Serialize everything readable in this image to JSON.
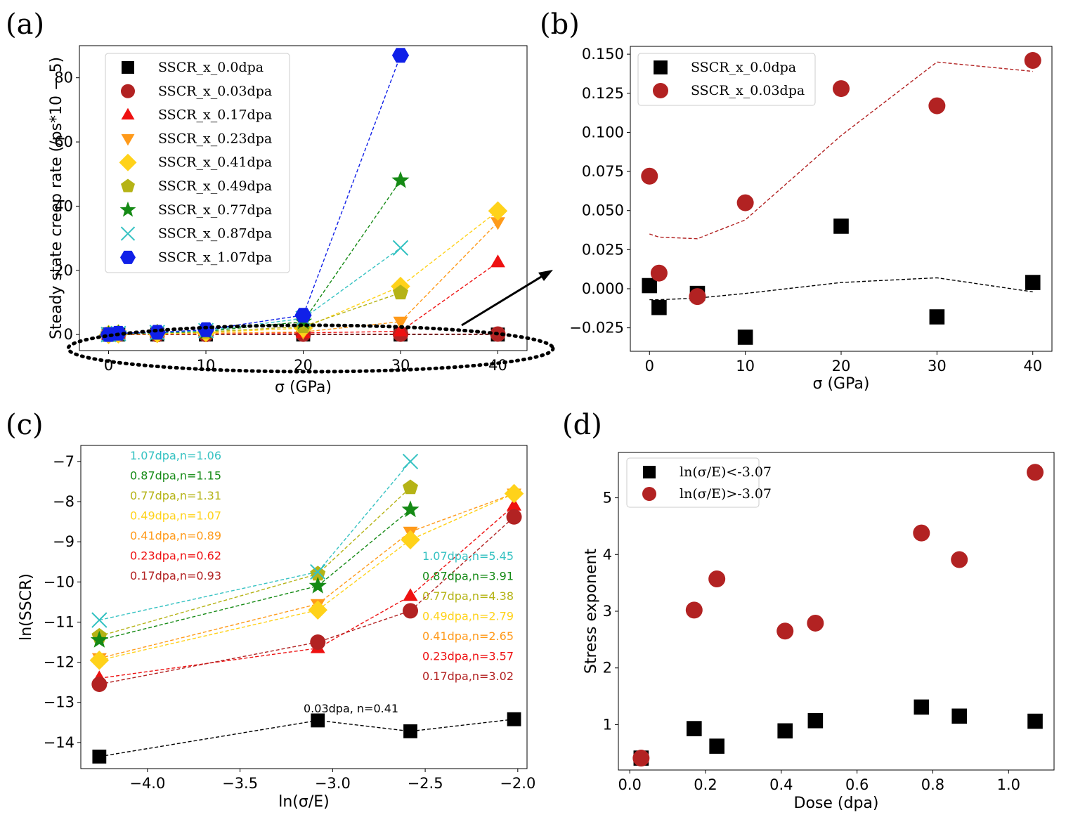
{
  "colors": {
    "dpa_0_0": "#000000",
    "dpa_0_03": "#b22222",
    "dpa_0_17": "#ee1111",
    "dpa_0_23": "#ff9a1a",
    "dpa_0_41": "#ffd21a",
    "dpa_0_49": "#b5b316",
    "dpa_0_77": "#158a15",
    "dpa_0_87": "#35c2c2",
    "dpa_1_07": "#1020e8"
  },
  "chart_data": [
    {
      "id": "a",
      "panel_label": "(a)",
      "type": "line",
      "xlabel": "σ (GPa)",
      "ylabel": "Steady state creep rate (/ps*10^-5)",
      "ylabel_display": "Steady state creep rate (/ps*10 − 5)",
      "xlim": [
        -3,
        43
      ],
      "ylim": [
        -5,
        90
      ],
      "xticks": [
        0,
        10,
        20,
        30,
        40
      ],
      "yticks": [
        0,
        20,
        40,
        60,
        80
      ],
      "legend_position": "upper-left",
      "annotation": "dotted ellipse around near-zero data with arrow to panel (b)",
      "series": [
        {
          "name": "SSCR_x_0.0dpa",
          "color": "dpa_0_0",
          "marker": "square",
          "x": [
            0,
            1,
            5,
            10,
            20,
            30,
            40
          ],
          "y": [
            0.0,
            0.0,
            0.0,
            0.0,
            0.0,
            0.0,
            0.0
          ]
        },
        {
          "name": "SSCR_x_0.03dpa",
          "color": "dpa_0_03",
          "marker": "circle",
          "x": [
            0,
            1,
            5,
            10,
            20,
            30,
            40
          ],
          "y": [
            0.07,
            0.01,
            0.0,
            0.05,
            0.13,
            0.12,
            0.15
          ]
        },
        {
          "name": "SSCR_x_0.17dpa",
          "color": "dpa_0_17",
          "marker": "triangle-up",
          "x": [
            0,
            1,
            5,
            10,
            20,
            30,
            40
          ],
          "y": [
            0.0,
            0.1,
            0.2,
            0.4,
            0.5,
            1.0,
            22.5
          ]
        },
        {
          "name": "SSCR_x_0.23dpa",
          "color": "dpa_0_23",
          "marker": "triangle-down",
          "x": [
            0,
            1,
            5,
            10,
            20,
            30,
            40
          ],
          "y": [
            0.0,
            0.1,
            0.2,
            0.4,
            0.8,
            4.0,
            35.0
          ]
        },
        {
          "name": "SSCR_x_0.41dpa",
          "color": "dpa_0_41",
          "marker": "diamond",
          "x": [
            0,
            1,
            5,
            10,
            20,
            30,
            40
          ],
          "y": [
            0.0,
            0.2,
            0.3,
            0.6,
            2.0,
            15.0,
            38.5
          ]
        },
        {
          "name": "SSCR_x_0.49dpa",
          "color": "dpa_0_49",
          "marker": "pentagon",
          "x": [
            0,
            1,
            5,
            10,
            20,
            30,
            40
          ],
          "y": [
            0.0,
            0.2,
            0.4,
            0.8,
            2.5,
            13.0,
            null
          ]
        },
        {
          "name": "SSCR_x_0.77dpa",
          "color": "dpa_0_77",
          "marker": "star",
          "x": [
            0,
            1,
            5,
            10,
            20,
            30,
            40
          ],
          "y": [
            0.0,
            0.3,
            0.5,
            1.0,
            4.0,
            48.0,
            null
          ]
        },
        {
          "name": "SSCR_x_0.87dpa",
          "color": "dpa_0_87",
          "marker": "x",
          "x": [
            0,
            1,
            5,
            10,
            20,
            30,
            40
          ],
          "y": [
            0.0,
            0.3,
            0.6,
            1.2,
            5.0,
            27.0,
            null
          ]
        },
        {
          "name": "SSCR_x_1.07dpa",
          "color": "dpa_1_07",
          "marker": "hexagon",
          "x": [
            0,
            1,
            5,
            10,
            20,
            30,
            40
          ],
          "y": [
            0.0,
            0.4,
            0.7,
            1.5,
            6.0,
            87.0,
            null
          ]
        }
      ]
    },
    {
      "id": "b",
      "panel_label": "(b)",
      "type": "scatter",
      "xlabel": "σ (GPa)",
      "ylabel": "",
      "xlim": [
        -2,
        42
      ],
      "ylim": [
        -0.04,
        0.155
      ],
      "xticks": [
        0,
        10,
        20,
        30,
        40
      ],
      "yticks": [
        -0.025,
        0.0,
        0.025,
        0.05,
        0.075,
        0.1,
        0.125,
        0.15
      ],
      "ytick_labels": [
        "−0.025",
        "0.000",
        "0.025",
        "0.050",
        "0.075",
        "0.100",
        "0.125",
        "0.150"
      ],
      "legend_position": "upper-left",
      "series": [
        {
          "name": "SSCR_x_0.0dpa",
          "color": "dpa_0_0",
          "marker": "square",
          "x": [
            0,
            1,
            5,
            10,
            20,
            30,
            40
          ],
          "y": [
            0.002,
            -0.012,
            -0.003,
            -0.031,
            0.04,
            -0.018,
            0.004
          ]
        },
        {
          "name": "SSCR_x_0.03dpa",
          "color": "dpa_0_03",
          "marker": "circle",
          "x": [
            0,
            1,
            5,
            10,
            20,
            30,
            40
          ],
          "y": [
            0.072,
            0.01,
            -0.005,
            0.055,
            0.128,
            0.117,
            0.146
          ]
        }
      ],
      "trend_lines": [
        {
          "color": "dpa_0_03",
          "x": [
            0,
            1,
            5,
            10,
            20,
            30,
            40
          ],
          "y": [
            0.035,
            0.033,
            0.032,
            0.044,
            0.098,
            0.145,
            0.139
          ]
        },
        {
          "color": "dpa_0_0",
          "x": [
            0,
            1,
            5,
            10,
            20,
            30,
            40
          ],
          "y": [
            -0.007,
            -0.007,
            -0.006,
            -0.003,
            0.004,
            0.007,
            -0.002
          ]
        }
      ]
    },
    {
      "id": "c",
      "panel_label": "(c)",
      "type": "line",
      "xlabel": "ln(σ/E)",
      "ylabel": "ln(SSCR)",
      "xlim": [
        -4.36,
        -1.95
      ],
      "ylim": [
        -14.65,
        -6.6
      ],
      "xticks": [
        -4.0,
        -3.5,
        -3.0,
        -2.5,
        -2.0
      ],
      "xtick_labels": [
        "−4.0",
        "−3.5",
        "−3.0",
        "−2.5",
        "−2.0"
      ],
      "yticks": [
        -14,
        -13,
        -12,
        -11,
        -10,
        -9,
        -8,
        -7
      ],
      "ytick_labels": [
        "−14",
        "−13",
        "−12",
        "−11",
        "−10",
        "−9",
        "−8",
        "−7"
      ],
      "annotations_left": [
        {
          "text": "1.07dpa,n=1.06",
          "color": "dpa_0_87"
        },
        {
          "text": "0.87dpa,n=1.15",
          "color": "dpa_0_77"
        },
        {
          "text": "0.77dpa,n=1.31",
          "color": "dpa_0_49"
        },
        {
          "text": "0.49dpa,n=1.07",
          "color": "dpa_0_41"
        },
        {
          "text": "0.41dpa,n=0.89",
          "color": "dpa_0_23"
        },
        {
          "text": "0.23dpa,n=0.62",
          "color": "dpa_0_17"
        },
        {
          "text": "0.17dpa,n=0.93",
          "color": "dpa_0_03"
        }
      ],
      "annotations_right": [
        {
          "text": "1.07dpa,n=5.45",
          "color": "dpa_0_87"
        },
        {
          "text": "0.87dpa,n=3.91",
          "color": "dpa_0_77"
        },
        {
          "text": "0.77dpa,n=4.38",
          "color": "dpa_0_49"
        },
        {
          "text": "0.49dpa,n=2.79",
          "color": "dpa_0_41"
        },
        {
          "text": "0.41dpa,n=2.65",
          "color": "dpa_0_23"
        },
        {
          "text": "0.23dpa,n=3.57",
          "color": "dpa_0_17"
        },
        {
          "text": "0.17dpa,n=3.02",
          "color": "dpa_0_03"
        }
      ],
      "annotation_bottom": {
        "text": "0.03dpa, n=0.41",
        "color": "dpa_0_0"
      },
      "series": [
        {
          "name": "0.03dpa",
          "color": "dpa_0_0",
          "marker": "square",
          "x": [
            -4.26,
            -3.08,
            -2.58,
            -2.02
          ],
          "y": [
            -14.35,
            -13.45,
            -13.72,
            -13.42
          ]
        },
        {
          "name": "0.17dpa",
          "color": "dpa_0_17",
          "marker": "triangle-up",
          "x": [
            -4.26,
            -3.08,
            -2.58,
            -2.02
          ],
          "y": [
            -12.4,
            -11.65,
            -10.35,
            -8.1
          ]
        },
        {
          "name": "0.23dpa",
          "color": "dpa_0_03",
          "marker": "circle",
          "x": [
            -4.26,
            -3.08,
            -2.58,
            -2.02
          ],
          "y": [
            -12.55,
            -11.5,
            -10.72,
            -8.38
          ]
        },
        {
          "name": "0.41dpa",
          "color": "dpa_0_23",
          "marker": "triangle-down",
          "x": [
            -4.26,
            -3.08,
            -2.58,
            -2.02
          ],
          "y": [
            -11.9,
            -10.55,
            -8.75,
            -7.8
          ]
        },
        {
          "name": "0.49dpa",
          "color": "dpa_0_41",
          "marker": "diamond",
          "x": [
            -4.26,
            -3.08,
            -2.58,
            -2.02
          ],
          "y": [
            -11.95,
            -10.7,
            -8.95,
            -7.8
          ]
        },
        {
          "name": "0.77dpa",
          "color": "dpa_0_49",
          "marker": "pentagon",
          "x": [
            -4.26,
            -3.08,
            -2.58
          ],
          "y": [
            -11.35,
            -9.8,
            -7.65
          ]
        },
        {
          "name": "0.87dpa",
          "color": "dpa_0_77",
          "marker": "star",
          "x": [
            -4.26,
            -3.08,
            -2.58
          ],
          "y": [
            -11.45,
            -10.1,
            -8.2
          ]
        },
        {
          "name": "1.07dpa",
          "color": "dpa_0_87",
          "marker": "x",
          "x": [
            -4.26,
            -3.08,
            -2.58
          ],
          "y": [
            -10.95,
            -9.75,
            -7.0
          ]
        }
      ]
    },
    {
      "id": "d",
      "panel_label": "(d)",
      "type": "scatter",
      "xlabel": "Dose (dpa)",
      "ylabel": "Stress exponent",
      "xlim": [
        -0.03,
        1.12
      ],
      "ylim": [
        0.2,
        5.8
      ],
      "xticks": [
        0.0,
        0.2,
        0.4,
        0.6,
        0.8,
        1.0
      ],
      "xtick_labels": [
        "0.0",
        "0.2",
        "0.4",
        "0.6",
        "0.8",
        "1.0"
      ],
      "yticks": [
        1,
        2,
        3,
        4,
        5
      ],
      "legend_position": "upper-left",
      "series": [
        {
          "name": "ln(σ/E)<-3.07",
          "color": "dpa_0_0",
          "marker": "square",
          "x": [
            0.03,
            0.17,
            0.23,
            0.41,
            0.49,
            0.77,
            0.87,
            1.07
          ],
          "y": [
            0.41,
            0.93,
            0.62,
            0.89,
            1.07,
            1.31,
            1.15,
            1.06
          ]
        },
        {
          "name": "ln(σ/E)>-3.07",
          "color": "dpa_0_03",
          "marker": "circle",
          "x": [
            0.03,
            0.17,
            0.23,
            0.41,
            0.49,
            0.77,
            0.87,
            1.07
          ],
          "y": [
            0.41,
            3.02,
            3.57,
            2.65,
            2.79,
            4.38,
            3.91,
            5.45
          ]
        }
      ]
    }
  ]
}
